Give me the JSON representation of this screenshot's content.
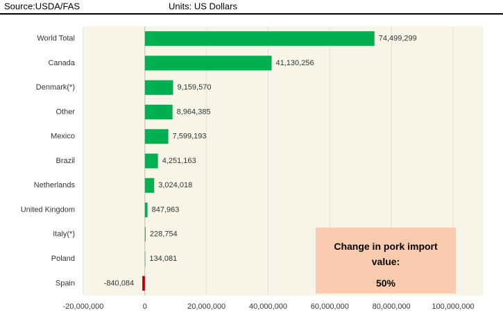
{
  "chart_data": {
    "type": "bar",
    "orientation": "horizontal",
    "source": "Source:USDA/FAS",
    "units": "Units: US Dollars",
    "categories": [
      "World Total",
      "Canada",
      "Denmark(*)",
      "Other",
      "Mexico",
      "Brazil",
      "Netherlands",
      "United Kingdom",
      "Italy(*)",
      "Poland",
      "Spain"
    ],
    "values": [
      74499299,
      41130256,
      9159570,
      8964385,
      7599193,
      4251163,
      3024018,
      847963,
      228754,
      134081,
      -840084
    ],
    "value_labels": [
      "74,499,299",
      "41,130,256",
      "9,159,570",
      "8,964,385",
      "7,599,193",
      "4,251,163",
      "3,024,018",
      "847,963",
      "228,754",
      "134,081",
      "-840,084"
    ],
    "colors": [
      "#00b050",
      "#00b050",
      "#00b050",
      "#00b050",
      "#00b050",
      "#00b050",
      "#00b050",
      "#00b050",
      "#00b050",
      "#00b050",
      "#c00000"
    ],
    "xlim": [
      -20000000,
      100000000
    ],
    "xticks": [
      {
        "value": -20000000,
        "label": "-20,000,000"
      },
      0,
      {
        "value": 20000000,
        "label": "20,000,000"
      },
      {
        "value": 40000000,
        "label": "40,000,000"
      },
      {
        "value": 60000000,
        "label": "60,000,000"
      },
      {
        "value": 80000000,
        "label": "80,000,000"
      },
      {
        "value": 100000000,
        "label": "100,000,000"
      }
    ],
    "grid": true,
    "annotation": {
      "text": "Change in pork import value:",
      "value": "50%"
    }
  }
}
